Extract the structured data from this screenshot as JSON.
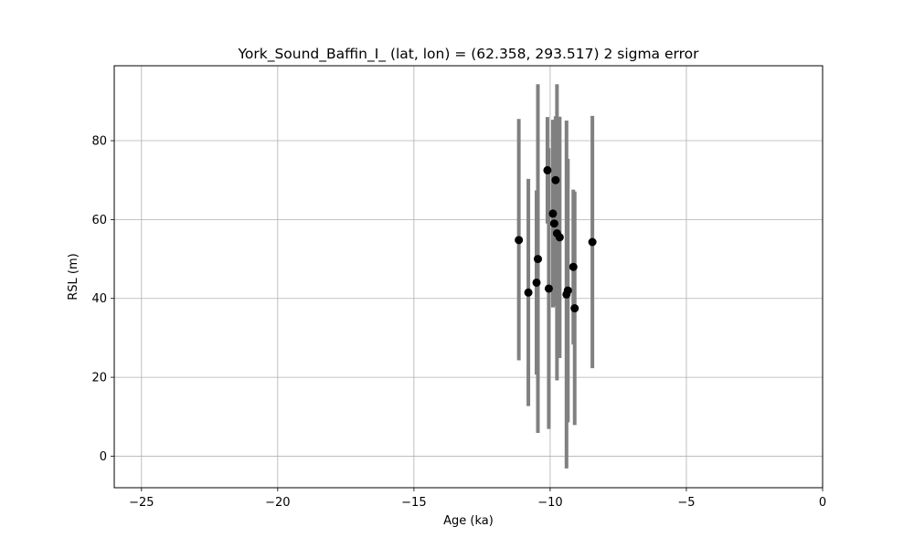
{
  "chart_data": {
    "type": "scatter",
    "title": "York_Sound_Baffin_I_ (lat, lon) = (62.358, 293.517)  2 sigma error",
    "xlabel": "Age (ka)",
    "ylabel": "RSL (m)",
    "xlim": [
      -26,
      0
    ],
    "ylim": [
      -8,
      99
    ],
    "xticks": [
      -25,
      -20,
      -15,
      -10,
      -5,
      0
    ],
    "xtick_labels": [
      "−25",
      "−20",
      "−15",
      "−10",
      "−5",
      "0"
    ],
    "yticks": [
      0,
      20,
      40,
      60,
      80
    ],
    "ytick_labels": [
      "0",
      "20",
      "40",
      "60",
      "80"
    ],
    "grid": true,
    "marker_color": "#000000",
    "errorbar_color": "#808080",
    "points": [
      {
        "x": -11.15,
        "y": 54.8,
        "ylow": 24.3,
        "yhigh": 85.5
      },
      {
        "x": -10.8,
        "y": 41.5,
        "ylow": 12.7,
        "yhigh": 70.3
      },
      {
        "x": -10.5,
        "y": 44.0,
        "ylow": 20.7,
        "yhigh": 67.4
      },
      {
        "x": -10.45,
        "y": 50.0,
        "ylow": 5.9,
        "yhigh": 94.3
      },
      {
        "x": -10.1,
        "y": 72.5,
        "ylow": 59.0,
        "yhigh": 86.0
      },
      {
        "x": -10.05,
        "y": 42.5,
        "ylow": 6.9,
        "yhigh": 78.1
      },
      {
        "x": -9.9,
        "y": 61.5,
        "ylow": 37.7,
        "yhigh": 85.3
      },
      {
        "x": -9.85,
        "y": 59.0,
        "ylow": 38.0,
        "yhigh": 80.0
      },
      {
        "x": -9.8,
        "y": 70.0,
        "ylow": 54.5,
        "yhigh": 86.2
      },
      {
        "x": -9.75,
        "y": 56.5,
        "ylow": 19.2,
        "yhigh": 94.3
      },
      {
        "x": -9.65,
        "y": 55.5,
        "ylow": 24.9,
        "yhigh": 86.1
      },
      {
        "x": -9.4,
        "y": 41.0,
        "ylow": -3.1,
        "yhigh": 85.1
      },
      {
        "x": -9.35,
        "y": 42.0,
        "ylow": 8.6,
        "yhigh": 75.4
      },
      {
        "x": -9.15,
        "y": 48.0,
        "ylow": 28.3,
        "yhigh": 67.6
      },
      {
        "x": -9.1,
        "y": 37.5,
        "ylow": 7.9,
        "yhigh": 67.1
      },
      {
        "x": -8.45,
        "y": 54.3,
        "ylow": 22.3,
        "yhigh": 86.3
      }
    ]
  }
}
